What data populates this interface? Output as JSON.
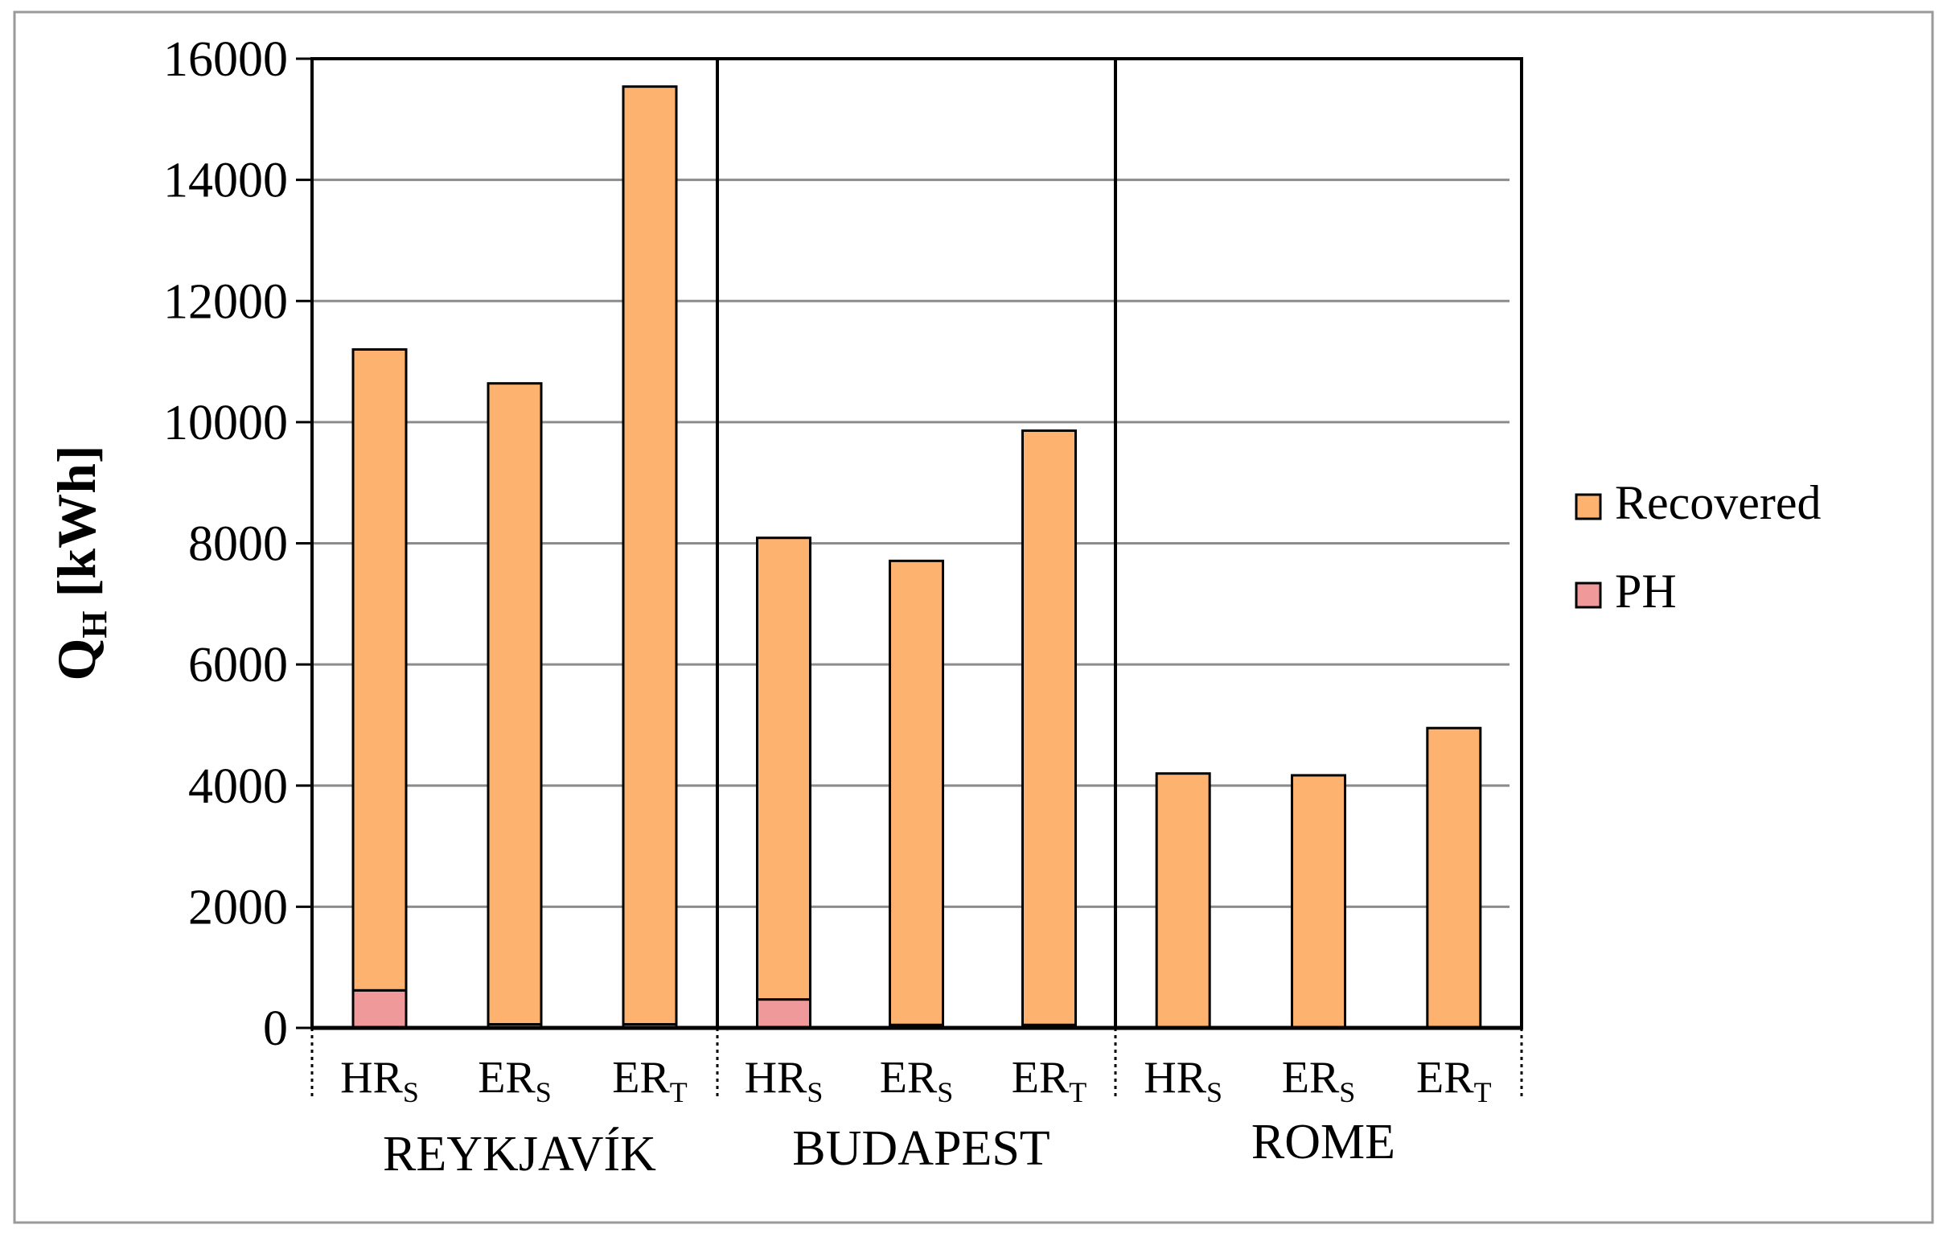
{
  "chart_data": {
    "type": "bar",
    "stacked": true,
    "ylabel": {
      "main": "Q",
      "subscript": "H",
      "unit": " [kWh]"
    },
    "ylim": [
      0,
      16000
    ],
    "yticks": [
      0,
      2000,
      4000,
      6000,
      8000,
      10000,
      12000,
      14000,
      16000
    ],
    "grid": true,
    "legend_position": "right",
    "groups": [
      {
        "name": "REYKJAVÍK",
        "categories": [
          {
            "main": "HR",
            "sub": "S"
          },
          {
            "main": "ER",
            "sub": "S"
          },
          {
            "main": "ER",
            "sub": "T"
          }
        ]
      },
      {
        "name": "BUDAPEST",
        "categories": [
          {
            "main": "HR",
            "sub": "S"
          },
          {
            "main": "ER",
            "sub": "S"
          },
          {
            "main": "ER",
            "sub": "T"
          }
        ]
      },
      {
        "name": "ROME",
        "categories": [
          {
            "main": "HR",
            "sub": "S"
          },
          {
            "main": "ER",
            "sub": "S"
          },
          {
            "main": "ER",
            "sub": "T"
          }
        ]
      }
    ],
    "series": [
      {
        "name": "PH",
        "color": "#f0999a",
        "values": [
          620,
          60,
          60,
          470,
          50,
          50,
          0,
          0,
          0
        ]
      },
      {
        "name": "Recovered",
        "color": "#fdb26f",
        "values": [
          10580,
          10580,
          15480,
          7620,
          7660,
          9810,
          4200,
          4170,
          4950
        ]
      }
    ],
    "legend_order": [
      "Recovered",
      "PH"
    ]
  }
}
